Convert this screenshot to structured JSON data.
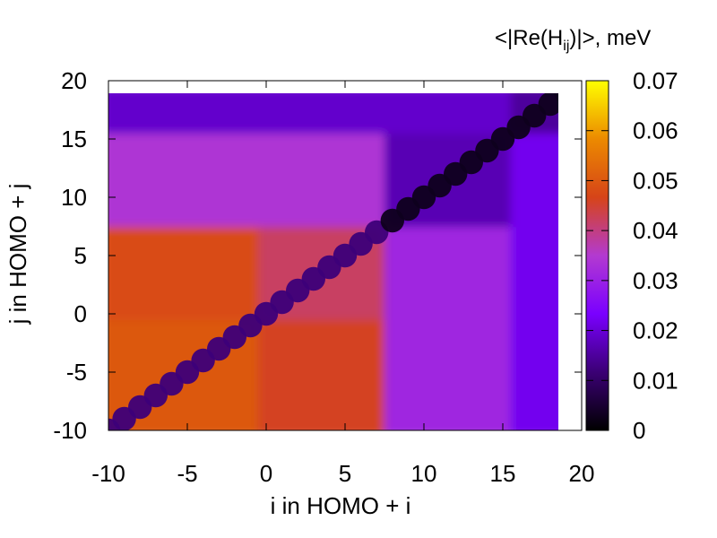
{
  "chart_data": {
    "type": "heatmap",
    "title": "",
    "xlabel": "i in HOMO + i",
    "ylabel": "j in HOMO + j",
    "xlim": [
      -10,
      20
    ],
    "ylim": [
      -10,
      20
    ],
    "xticks": [
      -10,
      -5,
      0,
      5,
      10,
      15,
      20
    ],
    "yticks": [
      -10,
      -5,
      0,
      5,
      10,
      15,
      20
    ],
    "index_range": [
      -10,
      19
    ],
    "colorbar": {
      "label_prefix": "<|Re(H",
      "label_subscript": "ij",
      "label_suffix": ")|>, meV",
      "range": [
        0,
        0.07
      ],
      "ticks": [
        "0",
        "0.01",
        "0.02",
        "0.03",
        "0.04",
        "0.05",
        "0.06",
        "0.07"
      ],
      "colormap": [
        "#000000",
        "#3b0075",
        "#7a00ff",
        "#b33ad0",
        "#d64418",
        "#ec8a00",
        "#ffff00"
      ]
    },
    "blocks": [
      {
        "i_range": [
          -10,
          -1
        ],
        "j_range": [
          -10,
          -1
        ],
        "value": 0.05
      },
      {
        "i_range": [
          0,
          7
        ],
        "j_range": [
          -10,
          -1
        ],
        "value": 0.046
      },
      {
        "i_range": [
          -10,
          -1
        ],
        "j_range": [
          0,
          7
        ],
        "value": 0.048
      },
      {
        "i_range": [
          0,
          7
        ],
        "j_range": [
          0,
          7
        ],
        "value": 0.042
      },
      {
        "i_range": [
          8,
          15
        ],
        "j_range": [
          -10,
          7
        ],
        "value": 0.031
      },
      {
        "i_range": [
          -10,
          7
        ],
        "j_range": [
          8,
          15
        ],
        "value": 0.034
      },
      {
        "i_range": [
          8,
          15
        ],
        "j_range": [
          8,
          15
        ],
        "value": 0.017
      },
      {
        "i_range": [
          16,
          19
        ],
        "j_range": [
          -10,
          15
        ],
        "value": 0.022
      },
      {
        "i_range": [
          -10,
          15
        ],
        "j_range": [
          16,
          19
        ],
        "value": 0.019
      },
      {
        "i_range": [
          16,
          19
        ],
        "j_range": [
          16,
          19
        ],
        "value": 0.015
      }
    ],
    "diagonal": {
      "value_low_indices": 0.012,
      "value_high_indices": 0.003,
      "split_index": 7
    }
  }
}
